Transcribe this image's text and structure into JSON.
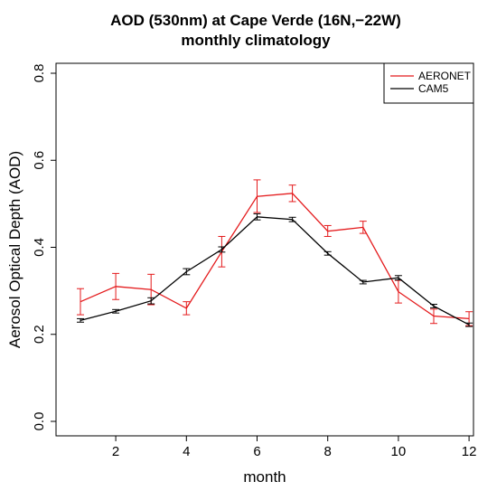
{
  "chart_data": {
    "type": "line",
    "title": "AOD (530nm) at Cape Verde (16N,−22W)",
    "subtitle": "monthly climatology",
    "xlabel": "month",
    "ylabel": "Aerosol Optical Depth (AOD)",
    "xlim": [
      1,
      12
    ],
    "ylim": [
      0,
      0.8
    ],
    "x_ticks": [
      2,
      4,
      6,
      8,
      10,
      12
    ],
    "x_tick_labels": [
      "2",
      "4",
      "6",
      "8",
      "10",
      "12"
    ],
    "y_ticks": [
      0.0,
      0.2,
      0.4,
      0.6,
      0.8
    ],
    "y_tick_labels": [
      "0.0",
      "0.2",
      "0.4",
      "0.6",
      "0.8"
    ],
    "grid": false,
    "legend_position": "top-right",
    "x": [
      1,
      2,
      3,
      4,
      5,
      6,
      7,
      8,
      9,
      10,
      11,
      12
    ],
    "series": [
      {
        "name": "AERONET",
        "color": "#e41a1c",
        "values": [
          0.275,
          0.31,
          0.303,
          0.26,
          0.39,
          0.517,
          0.524,
          0.437,
          0.446,
          0.298,
          0.242,
          0.236
        ],
        "error_low": [
          0.245,
          0.28,
          0.268,
          0.245,
          0.355,
          0.48,
          0.505,
          0.425,
          0.432,
          0.272,
          0.225,
          0.22
        ],
        "error_high": [
          0.305,
          0.34,
          0.338,
          0.275,
          0.425,
          0.555,
          0.543,
          0.45,
          0.46,
          0.324,
          0.258,
          0.252
        ]
      },
      {
        "name": "CAM5",
        "color": "#000000",
        "values": [
          0.232,
          0.253,
          0.277,
          0.344,
          0.395,
          0.47,
          0.464,
          0.386,
          0.32,
          0.33,
          0.265,
          0.222
        ],
        "error_low": [
          0.228,
          0.249,
          0.27,
          0.337,
          0.389,
          0.463,
          0.459,
          0.382,
          0.316,
          0.325,
          0.261,
          0.218
        ],
        "error_high": [
          0.236,
          0.257,
          0.284,
          0.351,
          0.401,
          0.477,
          0.469,
          0.39,
          0.324,
          0.335,
          0.269,
          0.226
        ]
      }
    ]
  }
}
